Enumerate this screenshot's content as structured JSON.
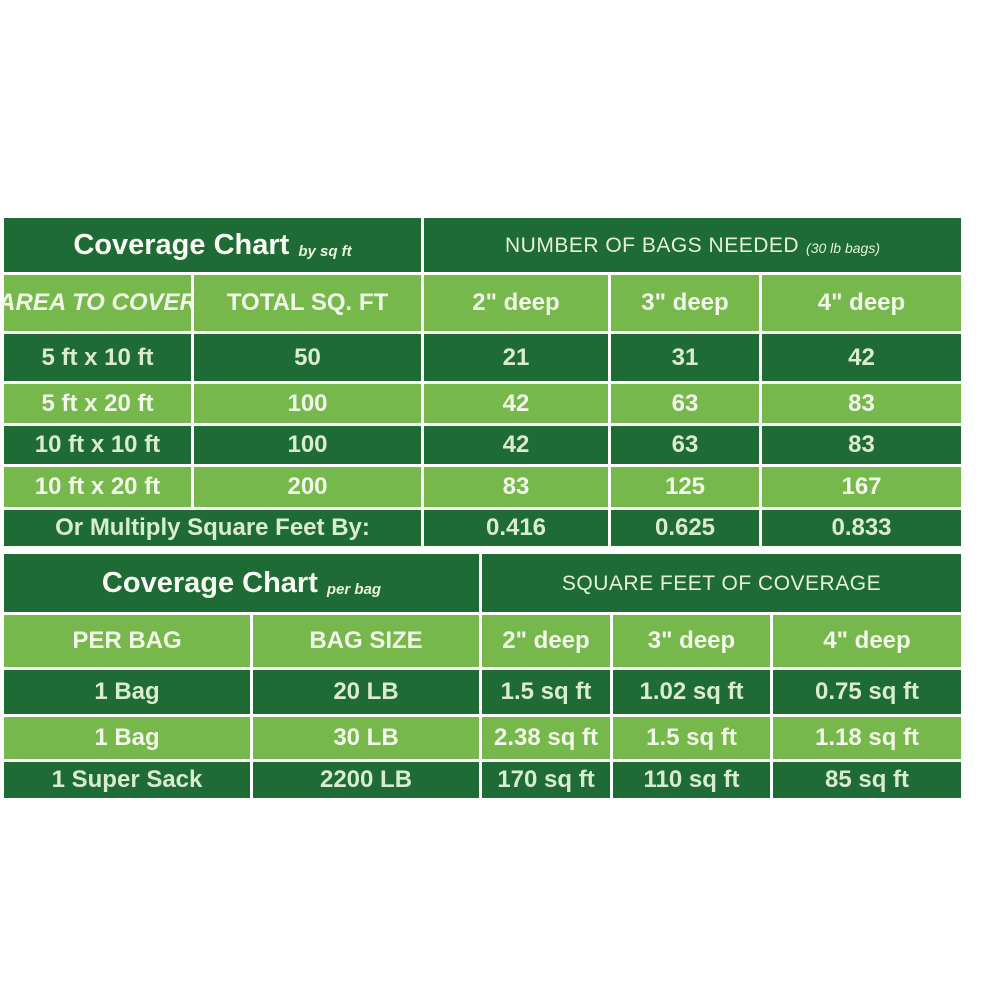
{
  "colors": {
    "dark_green": "#1e6b35",
    "light_green": "#76b84c",
    "text_on_dark": "#d9ecce",
    "text_on_light": "#f2fae9",
    "background": "#ffffff"
  },
  "chart_data": [
    {
      "type": "table",
      "title": "Coverage Chart",
      "subtitle": "by sq ft",
      "banner": "NUMBER OF BAGS NEEDED",
      "banner_note": "(30 lb bags)",
      "columns": [
        "AREA TO COVER",
        "TOTAL SQ. FT",
        "2\" deep",
        "3\" deep",
        "4\" deep"
      ],
      "rows": [
        [
          "5 ft x 10 ft",
          "50",
          "21",
          "31",
          "42"
        ],
        [
          "5 ft x 20 ft",
          "100",
          "42",
          "63",
          "83"
        ],
        [
          "10 ft x 10 ft",
          "100",
          "42",
          "63",
          "83"
        ],
        [
          "10 ft x 20 ft",
          "200",
          "83",
          "125",
          "167"
        ]
      ],
      "footer": [
        "Or Multiply Square Feet By:",
        "0.416",
        "0.625",
        "0.833"
      ],
      "layout": {
        "grid": true,
        "row_striping": [
          "dark",
          "light",
          "dark",
          "light"
        ]
      }
    },
    {
      "type": "table",
      "title": "Coverage Chart",
      "subtitle": "per bag",
      "banner": "SQUARE FEET OF COVERAGE",
      "columns": [
        "PER BAG",
        "BAG SIZE",
        "2\" deep",
        "3\" deep",
        "4\" deep"
      ],
      "rows": [
        [
          "1 Bag",
          "20 LB",
          "1.5 sq ft",
          "1.02 sq ft",
          "0.75 sq ft"
        ],
        [
          "1 Bag",
          "30 LB",
          "2.38 sq ft",
          "1.5 sq ft",
          "1.18 sq ft"
        ],
        [
          "1 Super Sack",
          "2200 LB",
          "170 sq ft",
          "110 sq ft",
          "85 sq ft"
        ]
      ],
      "layout": {
        "grid": true,
        "row_striping": [
          "dark",
          "light",
          "dark"
        ]
      }
    }
  ]
}
